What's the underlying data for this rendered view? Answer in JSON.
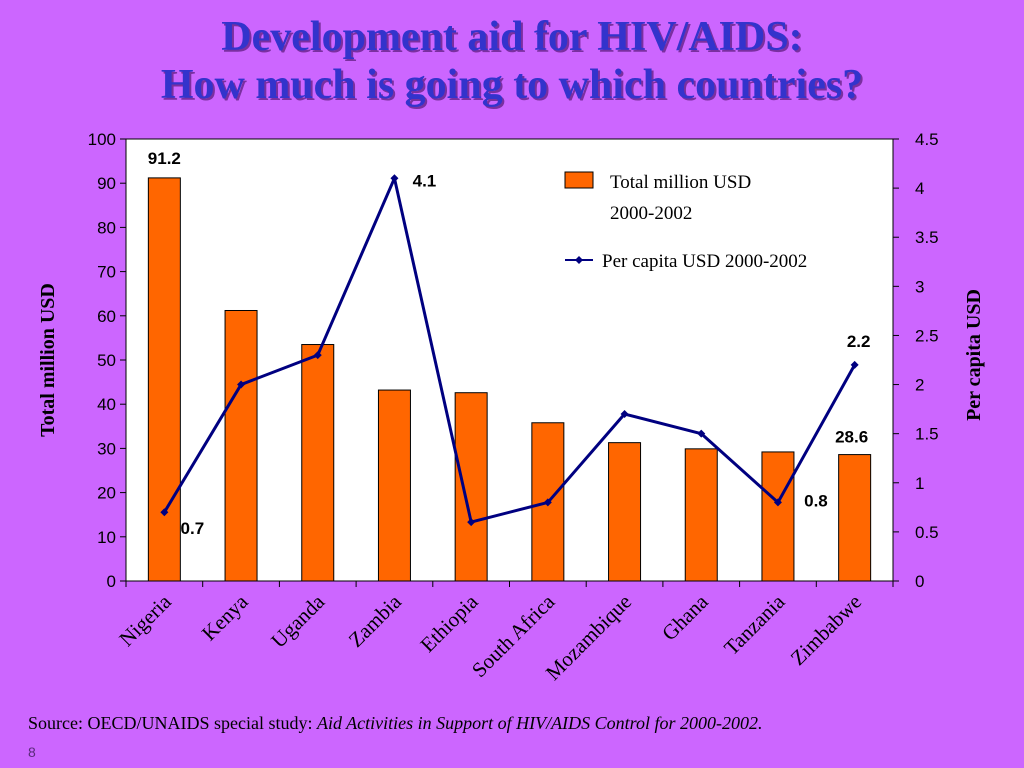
{
  "slide": {
    "title_line1": "Development aid for HIV/AIDS:",
    "title_line2": "How much is going to which countries?",
    "source_prefix": "Source: OECD/UNAIDS special study: ",
    "source_italic": "Aid Activities in Support of HIV/AIDS Control for 2000-2002.",
    "slide_number": "8"
  },
  "colors": {
    "background": "#CC66FF",
    "title": "#3333CC",
    "bar": "#FF6600",
    "line": "#000080"
  },
  "chart_data": {
    "type": "bar",
    "categories": [
      "Nigeria",
      "Kenya",
      "Uganda",
      "Zambia",
      "Ethiopia",
      "South Africa",
      "Mozambique",
      "Ghana",
      "Tanzania",
      "Zimbabwe"
    ],
    "series": [
      {
        "name": "Total million USD 2000-2002",
        "type": "bar",
        "axis": "left",
        "values": [
          91.2,
          61.2,
          53.5,
          43.2,
          42.6,
          35.8,
          31.3,
          29.9,
          29.2,
          28.6
        ]
      },
      {
        "name": "Per capita USD 2000-2002",
        "type": "line",
        "axis": "right",
        "values": [
          0.7,
          2.0,
          2.3,
          4.1,
          0.6,
          0.8,
          1.7,
          1.5,
          0.8,
          2.2
        ]
      }
    ],
    "data_labels": [
      {
        "series": 0,
        "index": 0,
        "text": "91.2"
      },
      {
        "series": 0,
        "index": 9,
        "text": "28.6"
      },
      {
        "series": 1,
        "index": 0,
        "text": "0.7"
      },
      {
        "series": 1,
        "index": 3,
        "text": "4.1"
      },
      {
        "series": 1,
        "index": 8,
        "text": "0.8"
      },
      {
        "series": 1,
        "index": 9,
        "text": "2.2"
      }
    ],
    "ylabel": "Total million USD",
    "y2label": "Per capita USD",
    "ylim": [
      0,
      100
    ],
    "y2lim": [
      0,
      4.5
    ],
    "yticks": [
      "0",
      "10",
      "20",
      "30",
      "40",
      "50",
      "60",
      "70",
      "80",
      "90",
      "100"
    ],
    "y2ticks": [
      "0",
      "0.5",
      "1",
      "1.5",
      "2",
      "2.5",
      "3",
      "3.5",
      "4",
      "4.5"
    ],
    "legend": {
      "position": "top-right",
      "bar_label_line1": "Total million USD",
      "bar_label_line2": "2000-2002",
      "line_label": "Per capita USD 2000-2002"
    },
    "grid": false
  }
}
